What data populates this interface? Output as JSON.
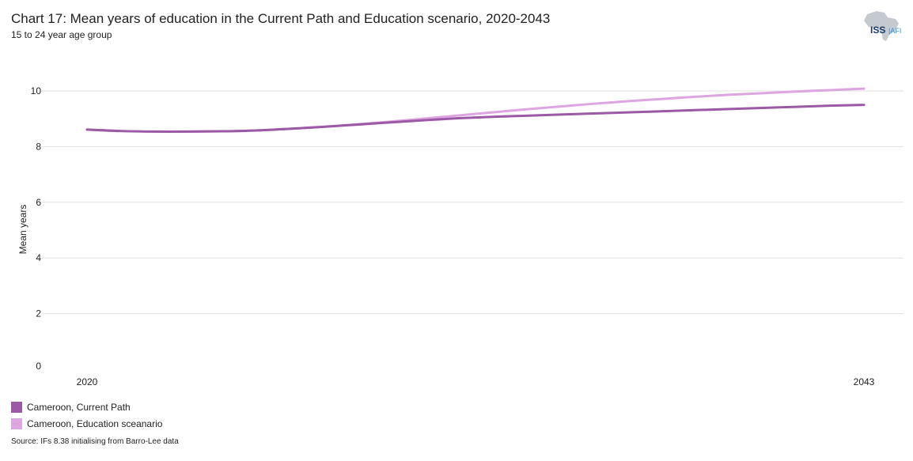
{
  "header": {
    "title": "Chart 17: Mean years of education in the Current Path and Education scenario, 2020-2043",
    "subtitle": "15 to 24 year age group",
    "logo_text": "ISS | AFI"
  },
  "footer": {
    "source": "Source: IFs 8.38 initialising from Barro-Lee data"
  },
  "chart_data": {
    "type": "line",
    "title": "Chart 17: Mean years of education in the Current Path and Education scenario, 2020-2043",
    "subtitle": "15 to 24 year age group",
    "xlabel": "",
    "ylabel": "Mean years",
    "x": [
      2020,
      2021,
      2022,
      2023,
      2024,
      2025,
      2026,
      2027,
      2028,
      2029,
      2030,
      2031,
      2032,
      2033,
      2034,
      2035,
      2036,
      2037,
      2038,
      2039,
      2040,
      2041,
      2042,
      2043
    ],
    "x_tick_labels": [
      "2020",
      "2043"
    ],
    "y_ticks": [
      0,
      2,
      4,
      6,
      8,
      10
    ],
    "ylim": [
      0,
      10.5
    ],
    "grid": "horizontal",
    "legend_position": "bottom-left",
    "series": [
      {
        "name": "Cameroon, Current Path",
        "color": "#9b59a6",
        "values": [
          8.61,
          8.56,
          8.54,
          8.54,
          8.55,
          8.58,
          8.64,
          8.71,
          8.79,
          8.87,
          8.95,
          9.02,
          9.07,
          9.11,
          9.15,
          9.19,
          9.23,
          9.27,
          9.31,
          9.35,
          9.39,
          9.43,
          9.47,
          9.5
        ]
      },
      {
        "name": "Cameroon, Education sceanario",
        "color": "#dda6e0",
        "values": [
          8.61,
          8.56,
          8.54,
          8.54,
          8.55,
          8.58,
          8.64,
          8.71,
          8.8,
          8.9,
          9.01,
          9.12,
          9.23,
          9.34,
          9.44,
          9.54,
          9.63,
          9.71,
          9.79,
          9.86,
          9.92,
          9.98,
          10.03,
          10.08
        ]
      }
    ]
  }
}
